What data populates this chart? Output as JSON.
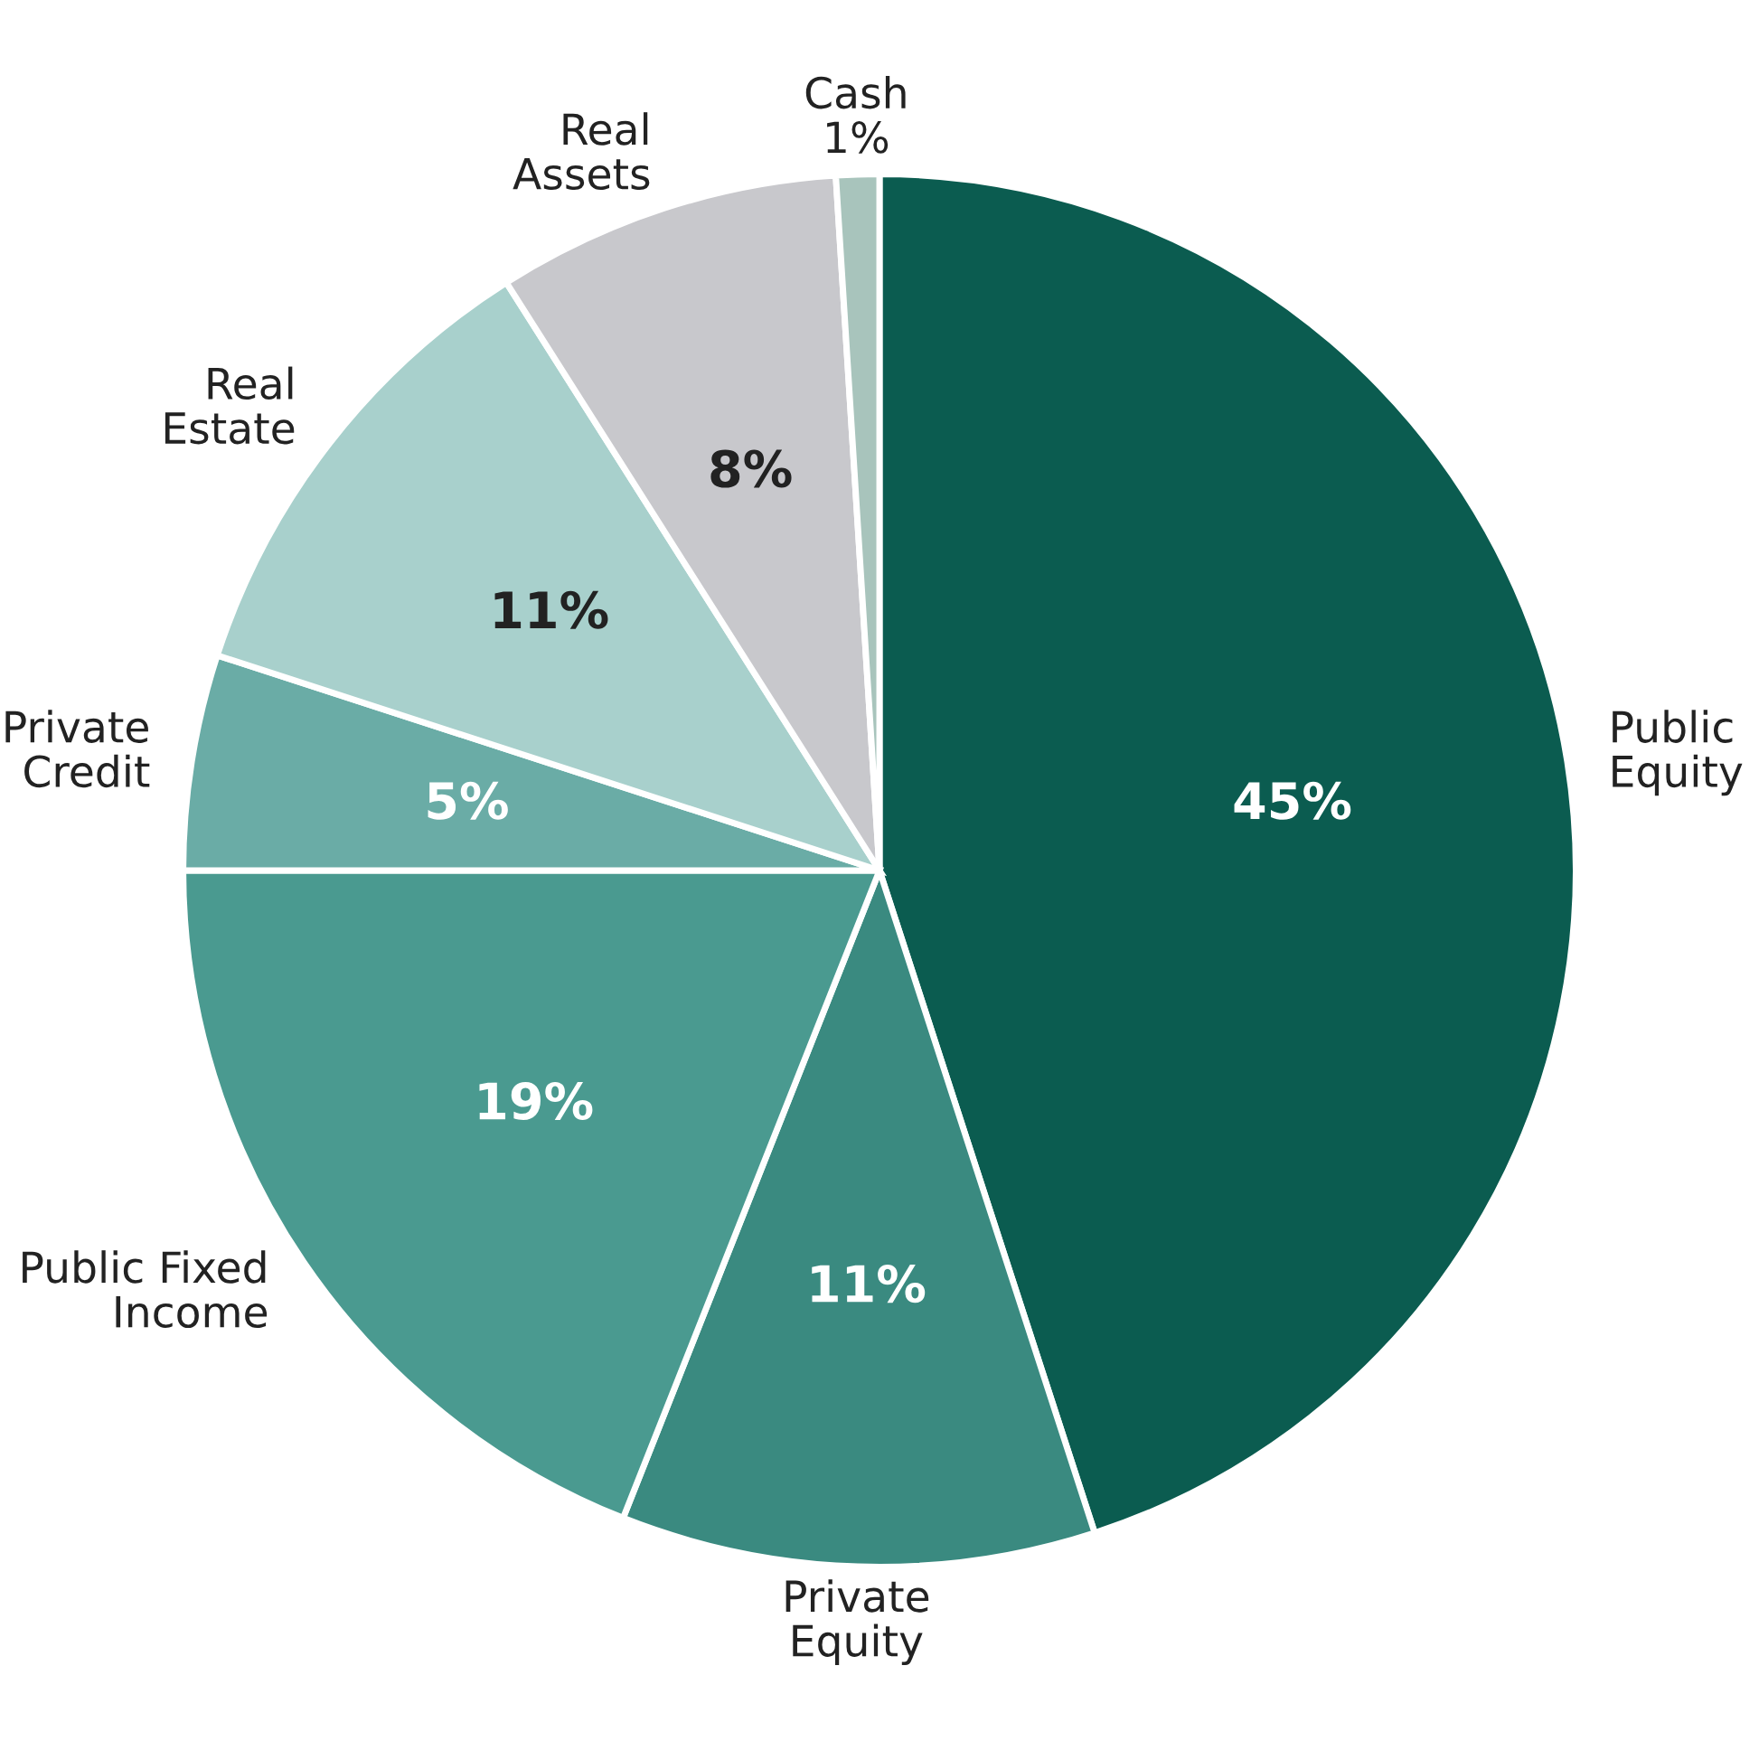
{
  "chart_data": {
    "type": "pie",
    "categories": [
      "Public\nEquity",
      "Private\nEquity",
      "Public Fixed\nIncome",
      "Private\nCredit",
      "Real\nEstate",
      "Real\nAssets",
      "Cash"
    ],
    "values": [
      45,
      11,
      19,
      5,
      11,
      8,
      1
    ],
    "value_labels": [
      "45%",
      "11%",
      "19%",
      "5%",
      "11%",
      "8%",
      "1%"
    ],
    "colors": [
      "#0b5c50",
      "#3a8a80",
      "#4a9a90",
      "#6aaca6",
      "#a8d0cc",
      "#c8c8cc",
      "#a8c4bc"
    ]
  }
}
